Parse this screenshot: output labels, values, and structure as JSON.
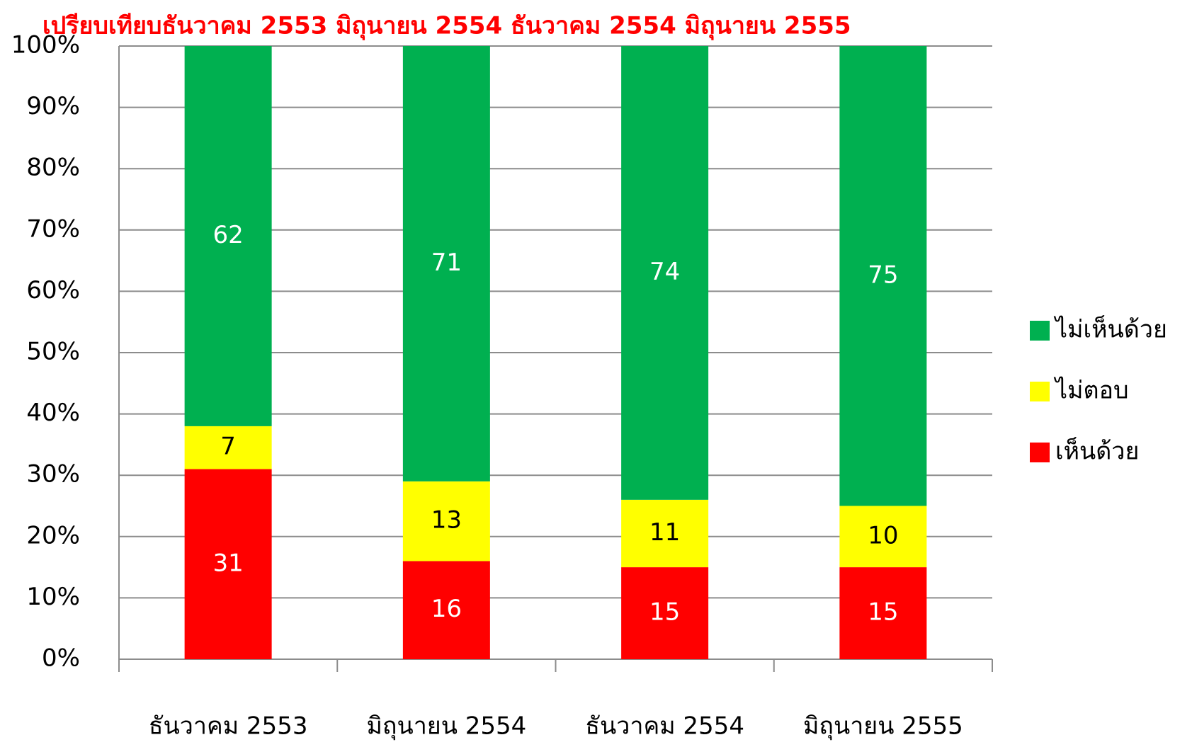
{
  "chart_data": {
    "type": "stacked_bar",
    "title": "เปรียบเทียบธันวาคม 2553 มิถุนายน 2554   ธันวาคม 2554    มิถุนายน 2555",
    "title_color": "#ff0000",
    "categories": [
      "ธันวาคม 2553",
      "มิถุนายน 2554",
      "ธันวาคม 2554",
      "มิถุนายน 2555"
    ],
    "series": [
      {
        "name": "เห็นด้วย",
        "color": "#ff0000",
        "label_color": "#ffffff",
        "values": [
          31,
          16,
          15,
          15
        ]
      },
      {
        "name": "ไม่ตอบ",
        "color": "#ffff00",
        "label_color": "#000000",
        "values": [
          7,
          13,
          11,
          10
        ]
      },
      {
        "name": "ไม่เห็นด้วย",
        "color": "#00b050",
        "label_color": "#ffffff",
        "values": [
          62,
          71,
          74,
          75
        ]
      }
    ],
    "ylim": [
      0,
      100
    ],
    "yticks": [
      {
        "value": 0,
        "label": "0%"
      },
      {
        "value": 10,
        "label": "10%"
      },
      {
        "value": 20,
        "label": "20%"
      },
      {
        "value": 30,
        "label": "30%"
      },
      {
        "value": 40,
        "label": "40%"
      },
      {
        "value": 50,
        "label": "50%"
      },
      {
        "value": 60,
        "label": "60%"
      },
      {
        "value": 70,
        "label": "70%"
      },
      {
        "value": 80,
        "label": "80%"
      },
      {
        "value": 90,
        "label": "90%"
      },
      {
        "value": 100,
        "label": "100%"
      }
    ],
    "grid": true,
    "legend": "right"
  }
}
